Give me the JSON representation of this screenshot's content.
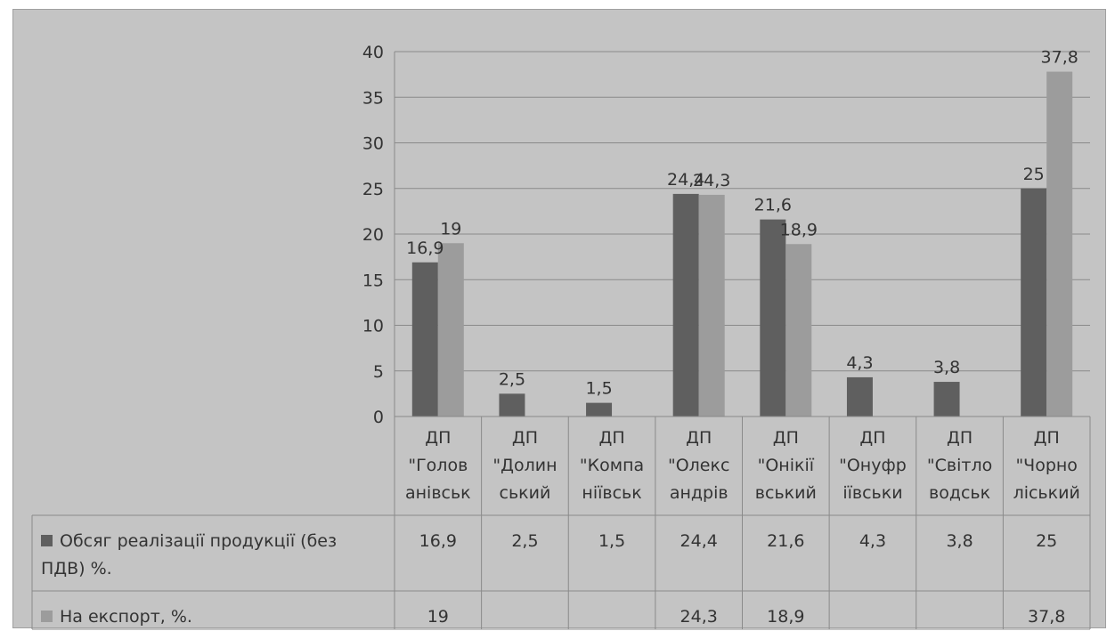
{
  "chart_data": {
    "type": "bar",
    "categories": [
      [
        "ДП",
        "\"Голов",
        "анівськ"
      ],
      [
        "ДП",
        "\"Долин",
        "ський"
      ],
      [
        "ДП",
        "\"Компа",
        "ніївськ"
      ],
      [
        "ДП",
        "\"Олекс",
        "андрів"
      ],
      [
        "ДП",
        "\"Онікії",
        "вський"
      ],
      [
        "ДП",
        "\"Онуфр",
        "іївськи"
      ],
      [
        "ДП",
        "\"Світло",
        "водськ"
      ],
      [
        "ДП",
        "\"Чорно",
        "ліський"
      ]
    ],
    "series": [
      {
        "name": [
          "Обсяг реалізації продукції (без",
          "ПДВ) %."
        ],
        "values": [
          16.9,
          2.5,
          1.5,
          24.4,
          21.6,
          4.3,
          3.8,
          25
        ],
        "value_labels": [
          "16,9",
          "2,5",
          "1,5",
          "24,4",
          "21,6",
          "4,3",
          "3,8",
          "25"
        ],
        "color": "#5f5f5f"
      },
      {
        "name": [
          "На експорт, %."
        ],
        "values": [
          19,
          null,
          null,
          24.3,
          18.9,
          null,
          null,
          37.8
        ],
        "value_labels": [
          "19",
          "",
          "",
          "24,3",
          "18,9",
          "",
          "",
          "37,8"
        ],
        "color": "#9c9c9c"
      }
    ],
    "ylim": [
      0,
      40
    ],
    "yticks": [
      0,
      5,
      10,
      15,
      20,
      25,
      30,
      35,
      40
    ],
    "ytick_labels": [
      "0",
      "5",
      "10",
      "15",
      "20",
      "25",
      "30",
      "35",
      "40"
    ],
    "grid": true,
    "data_table": true,
    "legend": "data-table",
    "title": "",
    "xlabel": "",
    "ylabel": ""
  }
}
